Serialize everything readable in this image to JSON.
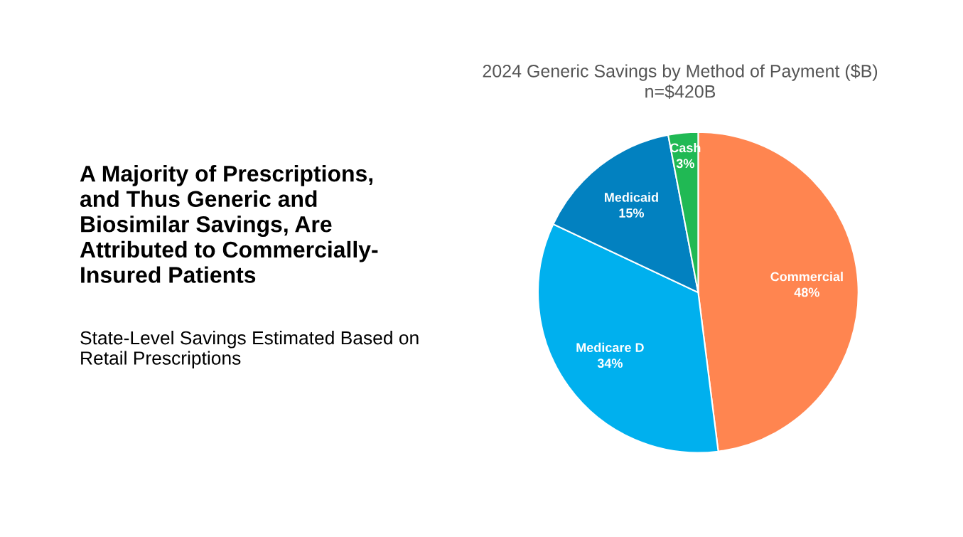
{
  "chart_data": {
    "type": "pie",
    "title": "A Majority of Prescriptions,\nand Thus Generic and\nBiosimilar Savings, Are\nAttributed to Commercially-\nInsured Patients",
    "subtitle": "State-Level Savings Estimated Based on\nRetail Prescriptions",
    "annotations": [
      "2024 Generic Savings by Method of Payment ($B)\nn=$420B"
    ],
    "categories": [
      "Commercial",
      "Medicare D",
      "Medicaid",
      "Cash"
    ],
    "values": [
      48,
      34,
      15,
      3
    ],
    "value_labels": [
      "48%",
      "34%",
      "15%",
      "3%"
    ],
    "colors": [
      "#ff8550",
      "#00b0ee",
      "#0281c0",
      "#20b954"
    ],
    "legend": false
  }
}
